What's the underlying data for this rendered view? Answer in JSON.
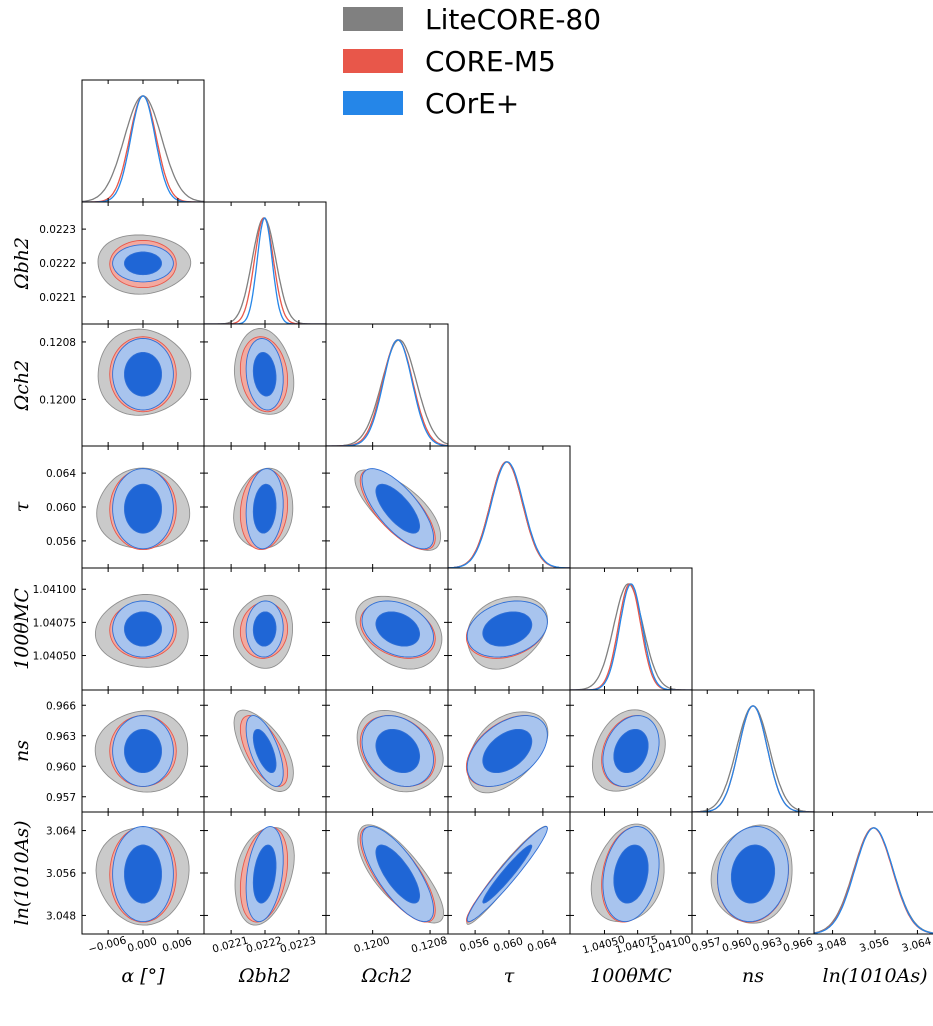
{
  "legend": {
    "placement": "top-center",
    "entries": [
      {
        "label": "LiteCORE-80",
        "color": "#808080"
      },
      {
        "label": "CORE-M5",
        "color": "#e8574a"
      },
      {
        "label": "COrE+",
        "color": "#2586e8"
      }
    ]
  },
  "chart_data": {
    "type": "triangle-contour",
    "title": "",
    "parameters": [
      {
        "key": "alpha",
        "label": "α [°]",
        "sub": "",
        "sup": "",
        "ticks": [
          "−0.006",
          "0.000",
          "0.006"
        ],
        "tick_values": [
          -0.006,
          0.0,
          0.006
        ],
        "range": [
          -0.0105,
          0.0105
        ],
        "means": [
          0.0,
          0.0,
          0.0
        ],
        "sigmas": [
          0.0032,
          0.0023,
          0.0021
        ]
      },
      {
        "key": "ombh2",
        "label": "Ωbh2",
        "sub": "b",
        "sup": "2",
        "ticks": [
          "0.0221",
          "0.0222",
          "0.0223"
        ],
        "tick_values": [
          0.0221,
          0.0222,
          0.0223
        ],
        "range": [
          0.02202,
          0.02238
        ],
        "means": [
          0.022197,
          0.022197,
          0.022199
        ],
        "sigmas": [
          3.5e-05,
          2.8e-05,
          2.2e-05
        ]
      },
      {
        "key": "omch2",
        "label": "Ωch2",
        "sub": "c",
        "sup": "2",
        "ticks": [
          "0.1200",
          "0.1208"
        ],
        "tick_values": [
          0.12,
          0.1208
        ],
        "range": [
          0.11935,
          0.12105
        ],
        "means": [
          0.12037,
          0.12035,
          0.12035
        ],
        "sigmas": [
          0.00024,
          0.00021,
          0.0002
        ]
      },
      {
        "key": "tau",
        "label": "τ",
        "sub": "",
        "sup": "",
        "ticks": [
          "0.056",
          "0.060",
          "0.064"
        ],
        "tick_values": [
          0.056,
          0.06,
          0.064
        ],
        "range": [
          0.0528,
          0.0672
        ],
        "means": [
          0.0597,
          0.0597,
          0.0598
        ],
        "sigmas": [
          0.0019,
          0.0019,
          0.0019
        ]
      },
      {
        "key": "theta",
        "label": "100θMC",
        "sub": "MC",
        "sup": "",
        "ticks": [
          "1.04050",
          "1.04075",
          "1.04100"
        ],
        "tick_values": [
          1.0405,
          1.04075,
          1.041
        ],
        "range": [
          1.04024,
          1.04116
        ],
        "means": [
          1.04068,
          1.04069,
          1.0407
        ],
        "sigmas": [
          0.00011,
          8.5e-05,
          8.5e-05
        ]
      },
      {
        "key": "ns",
        "label": "ns",
        "sub": "s",
        "sup": "",
        "ticks": [
          "0.957",
          "0.960",
          "0.963",
          "0.966"
        ],
        "tick_values": [
          0.957,
          0.96,
          0.963,
          0.966
        ],
        "range": [
          0.9555,
          0.9675
        ],
        "means": [
          0.9615,
          0.9615,
          0.9615
        ],
        "sigmas": [
          0.0016,
          0.0014,
          0.0014
        ]
      },
      {
        "key": "logA",
        "label": "ln(1010As)",
        "sub": "s",
        "sup": "10",
        "ticks": [
          "3.048",
          "3.056",
          "3.064"
        ],
        "tick_values": [
          3.048,
          3.056,
          3.064
        ],
        "range": [
          3.0445,
          3.0675
        ],
        "means": [
          3.0557,
          3.0557,
          3.0558
        ],
        "sigmas": [
          0.0037,
          0.0036,
          0.0036
        ]
      }
    ],
    "correlations": {
      "alpha-ombh2": 0.0,
      "alpha-omch2": 0.0,
      "alpha-tau": 0.0,
      "alpha-theta": 0.0,
      "alpha-ns": 0.0,
      "alpha-logA": 0.0,
      "ombh2-omch2": -0.15,
      "ombh2-tau": 0.12,
      "ombh2-theta": 0.05,
      "ombh2-ns": -0.62,
      "ombh2-logA": 0.3,
      "omch2-tau": -0.72,
      "omch2-theta": -0.3,
      "omch2-ns": -0.25,
      "omch2-logA": -0.75,
      "tau-theta": 0.25,
      "tau-ns": 0.45,
      "tau-logA": 0.96,
      "theta-ns": 0.25,
      "theta-logA": 0.22,
      "ns-logA": 0.1
    }
  }
}
